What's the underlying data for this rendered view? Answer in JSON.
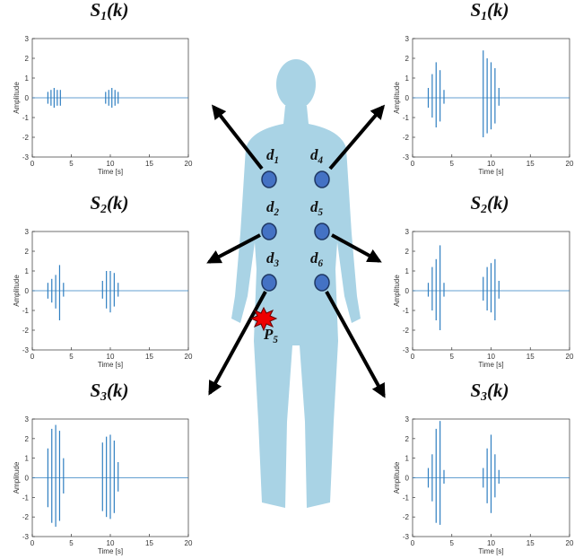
{
  "nodes": [
    {
      "base": "d",
      "sub": "1"
    },
    {
      "base": "d",
      "sub": "2"
    },
    {
      "base": "d",
      "sub": "3"
    },
    {
      "base": "d",
      "sub": "4"
    },
    {
      "base": "d",
      "sub": "5"
    },
    {
      "base": "d",
      "sub": "6"
    }
  ],
  "source": {
    "base": "P",
    "sub": "5"
  },
  "panels": [
    {
      "title": {
        "base": "S",
        "sub": "1",
        "rest": "(k)"
      },
      "xlabel": "Time [s]",
      "ylabel": "Amplitude",
      "xlim": [
        0,
        20
      ],
      "xticks": [
        0,
        5,
        10,
        15,
        20
      ],
      "ylim": [
        -3,
        3
      ],
      "yticks": [
        -3,
        -2,
        -1,
        0,
        1,
        2,
        3
      ],
      "color": "#2f7fc1",
      "t": [
        2,
        2.4,
        2.8,
        3.2,
        3.6,
        9.4,
        9.8,
        10.2,
        10.6,
        11
      ],
      "max": [
        0.3,
        0.4,
        0.5,
        0.4,
        0.4,
        0.3,
        0.4,
        0.5,
        0.4,
        0.3
      ],
      "min": [
        -0.3,
        -0.4,
        -0.5,
        -0.4,
        -0.4,
        -0.3,
        -0.4,
        -0.5,
        -0.4,
        -0.3
      ]
    },
    {
      "title": {
        "base": "S",
        "sub": "2",
        "rest": "(k)"
      },
      "xlabel": "Time [s]",
      "ylabel": "Amplitude",
      "xlim": [
        0,
        20
      ],
      "xticks": [
        0,
        5,
        10,
        15,
        20
      ],
      "ylim": [
        -3,
        3
      ],
      "yticks": [
        -3,
        -2,
        -1,
        0,
        1,
        2,
        3
      ],
      "color": "#2f7fc1",
      "t": [
        2,
        2.5,
        3,
        3.5,
        4,
        9,
        9.5,
        10,
        10.5,
        11
      ],
      "max": [
        0.4,
        0.6,
        0.8,
        1.3,
        0.4,
        0.5,
        1,
        1,
        0.9,
        0.4
      ],
      "min": [
        -0.4,
        -0.6,
        -0.9,
        -1.5,
        -0.3,
        -0.4,
        -0.9,
        -1.1,
        -0.8,
        -0.3
      ]
    },
    {
      "title": {
        "base": "S",
        "sub": "3",
        "rest": "(k)"
      },
      "xlabel": "Time [s]",
      "ylabel": "Amplitude",
      "xlim": [
        0,
        20
      ],
      "xticks": [
        0,
        5,
        10,
        15,
        20
      ],
      "ylim": [
        -3,
        3
      ],
      "yticks": [
        -3,
        -2,
        -1,
        0,
        1,
        2,
        3
      ],
      "color": "#2f7fc1",
      "t": [
        2,
        2.5,
        3,
        3.5,
        4,
        9,
        9.5,
        10,
        10.5,
        11
      ],
      "max": [
        1.5,
        2.5,
        2.7,
        2.4,
        1,
        1.8,
        2.1,
        2.2,
        1.9,
        0.8
      ],
      "min": [
        -1.5,
        -2.3,
        -2.5,
        -2.2,
        -0.8,
        -1.7,
        -2,
        -2.1,
        -1.8,
        -0.7
      ]
    },
    {
      "title": {
        "base": "S",
        "sub": "1",
        "rest": "(k)"
      },
      "xlabel": "Time [s]",
      "ylabel": "Amplitude",
      "xlim": [
        0,
        20
      ],
      "xticks": [
        0,
        5,
        10,
        15,
        20
      ],
      "ylim": [
        -3,
        3
      ],
      "yticks": [
        -3,
        -2,
        -1,
        0,
        1,
        2,
        3
      ],
      "color": "#2f7fc1",
      "t": [
        2,
        2.5,
        3,
        3.5,
        4,
        9,
        9.5,
        10,
        10.5,
        11
      ],
      "max": [
        0.5,
        1.2,
        1.8,
        1.4,
        0.4,
        2.4,
        2,
        1.8,
        1.5,
        0.5
      ],
      "min": [
        -0.5,
        -1,
        -1.5,
        -1.2,
        -0.3,
        -2,
        -1.8,
        -1.6,
        -1.3,
        -0.4
      ]
    },
    {
      "title": {
        "base": "S",
        "sub": "2",
        "rest": "(k)"
      },
      "xlabel": "Time [s]",
      "ylabel": "Amplitude",
      "xlim": [
        0,
        20
      ],
      "xticks": [
        0,
        5,
        10,
        15,
        20
      ],
      "ylim": [
        -3,
        3
      ],
      "yticks": [
        -3,
        -2,
        -1,
        0,
        1,
        2,
        3
      ],
      "color": "#2f7fc1",
      "t": [
        2,
        2.5,
        3,
        3.5,
        4,
        9,
        9.5,
        10,
        10.5,
        11
      ],
      "max": [
        0.4,
        1.2,
        1.6,
        2.3,
        0.4,
        0.7,
        1.2,
        1.4,
        1.6,
        0.5
      ],
      "min": [
        -0.3,
        -1,
        -1.5,
        -2,
        -0.3,
        -0.5,
        -1,
        -1.1,
        -1.5,
        -0.4
      ]
    },
    {
      "title": {
        "base": "S",
        "sub": "3",
        "rest": "(k)"
      },
      "xlabel": "Time [s]",
      "ylabel": "Amplitude",
      "xlim": [
        0,
        20
      ],
      "xticks": [
        0,
        5,
        10,
        15,
        20
      ],
      "ylim": [
        -3,
        3
      ],
      "yticks": [
        -3,
        -2,
        -1,
        0,
        1,
        2,
        3
      ],
      "color": "#2f7fc1",
      "t": [
        2,
        2.5,
        3,
        3.5,
        4,
        9,
        9.5,
        10,
        10.5,
        11
      ],
      "max": [
        0.5,
        1.2,
        2.5,
        2.9,
        0.4,
        0.5,
        1.5,
        2.2,
        1.2,
        0.4
      ],
      "min": [
        -0.5,
        -1.2,
        -2.3,
        -2.4,
        -0.3,
        -0.5,
        -1.3,
        -1.8,
        -1,
        -0.3
      ]
    }
  ]
}
